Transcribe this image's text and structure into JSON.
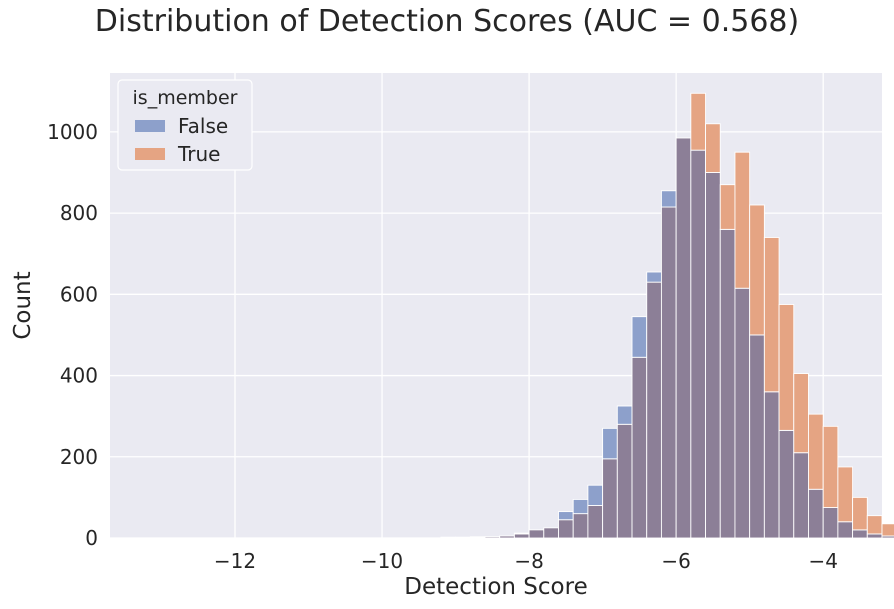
{
  "chart_data": {
    "type": "bar",
    "title": "Distribution of Detection Scores (AUC = 0.568)",
    "xlabel": "Detection Score",
    "ylabel": "Count",
    "xlim": [
      -13.7,
      -3.2
    ],
    "ylim": [
      0,
      1145
    ],
    "xticks": [
      -12,
      -10,
      -8,
      -6,
      -4
    ],
    "xtick_labels": [
      "−12",
      "−10",
      "−8",
      "−6",
      "−4"
    ],
    "yticks": [
      0,
      200,
      400,
      600,
      800,
      1000
    ],
    "ytick_labels": [
      "0",
      "200",
      "400",
      "600",
      "800",
      "1000"
    ],
    "grid": true,
    "legend": {
      "title": "is_member",
      "placement": "top-left"
    },
    "bin_width": 0.2,
    "bin_edges_start": -9.4,
    "colors": {
      "False": "#8da0cb",
      "True": "#e5a483",
      "overlap": "#8c7f97",
      "background": "#eaeaf2",
      "grid": "#ffffff"
    },
    "series": [
      {
        "name": "False",
        "values": [
          0,
          0,
          0,
          2,
          3,
          5,
          10,
          20,
          25,
          65,
          95,
          130,
          270,
          325,
          545,
          655,
          855,
          985,
          955,
          900,
          760,
          615,
          500,
          360,
          265,
          210,
          120,
          75,
          40,
          20,
          10,
          5,
          2
        ]
      },
      {
        "name": "True",
        "values": [
          0,
          2,
          2,
          3,
          3,
          5,
          12,
          20,
          25,
          45,
          60,
          80,
          195,
          280,
          445,
          630,
          815,
          985,
          1095,
          1020,
          870,
          950,
          820,
          740,
          575,
          405,
          305,
          275,
          175,
          100,
          55,
          35,
          15
        ]
      }
    ]
  }
}
